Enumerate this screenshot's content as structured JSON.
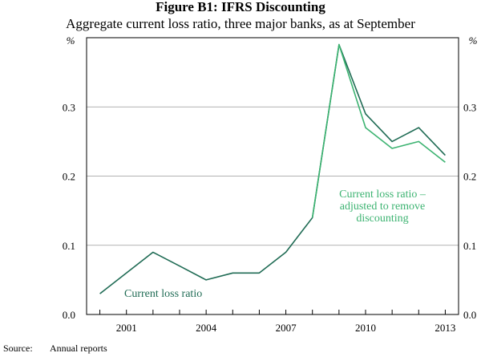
{
  "figure": {
    "title": "Figure B1: IFRS Discounting",
    "subtitle": "Aggregate current loss ratio, three major banks, as at September",
    "source_label": "Source:",
    "source_text": "Annual reports"
  },
  "chart_data": {
    "type": "line",
    "title": "Figure B1: IFRS Discounting",
    "subtitle": "Aggregate current loss ratio, three major banks, as at September",
    "y_unit_left": "%",
    "y_unit_right": "%",
    "xlim": [
      1999.5,
      2013.5
    ],
    "ylim": [
      0.0,
      0.4
    ],
    "y_ticks": [
      0.0,
      0.1,
      0.2,
      0.3
    ],
    "y_tick_labels": [
      "0.0",
      "0.1",
      "0.2",
      "0.3"
    ],
    "x_ticks": [
      2001,
      2004,
      2007,
      2010,
      2013
    ],
    "x_tick_labels": [
      "2001",
      "2004",
      "2007",
      "2010",
      "2013"
    ],
    "grid": "horizontal",
    "x": [
      2000,
      2001,
      2002,
      2003,
      2004,
      2005,
      2006,
      2007,
      2008,
      2009,
      2010,
      2011,
      2012,
      2013
    ],
    "series": [
      {
        "name": "Current loss ratio",
        "color": "#1f6b54",
        "label_lines": [
          "Current loss ratio"
        ],
        "values": [
          0.03,
          0.06,
          0.09,
          0.07,
          0.05,
          0.06,
          0.06,
          0.09,
          0.14,
          0.39,
          0.29,
          0.25,
          0.27,
          0.23
        ]
      },
      {
        "name": "Current loss ratio – adjusted to remove discounting",
        "color": "#3cb371",
        "label_lines": [
          "Current loss ratio –",
          "adjusted to remove",
          "discounting"
        ],
        "values": [
          null,
          null,
          null,
          null,
          null,
          null,
          null,
          null,
          0.14,
          0.39,
          0.27,
          0.24,
          0.25,
          0.22
        ]
      }
    ],
    "source": "Annual reports"
  }
}
